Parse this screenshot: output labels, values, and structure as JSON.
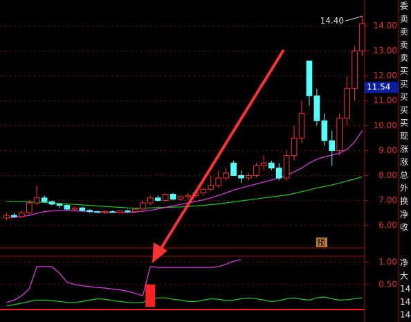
{
  "chart_data": {
    "type": "candlestick",
    "open": [
      6.3,
      6.4,
      6.35,
      6.5,
      6.9,
      7.1,
      6.95,
      6.85,
      6.8,
      6.65,
      6.7,
      6.6,
      6.55,
      6.52,
      6.55,
      6.52,
      6.58,
      6.55,
      6.65,
      6.9,
      7.1,
      7.0,
      7.25,
      7.05,
      7.15,
      7.2,
      7.3,
      7.45,
      7.6,
      7.9,
      8.5,
      8.0,
      7.9,
      8.0,
      8.4,
      8.5,
      8.3,
      7.9,
      8.8,
      9.5,
      12.6,
      11.2,
      10.2,
      9.4,
      9.0,
      10.3,
      11.5,
      13.0
    ],
    "high": [
      6.5,
      6.5,
      6.6,
      7.0,
      7.6,
      7.2,
      7.0,
      6.9,
      6.85,
      6.75,
      6.75,
      6.65,
      6.6,
      6.6,
      6.6,
      6.6,
      6.62,
      6.7,
      7.0,
      7.2,
      7.2,
      7.3,
      7.3,
      7.2,
      7.3,
      7.35,
      7.5,
      8.0,
      8.2,
      8.3,
      8.6,
      8.2,
      8.1,
      8.5,
      8.8,
      8.6,
      8.5,
      9.0,
      10.0,
      11.0,
      12.6,
      11.5,
      10.5,
      9.8,
      10.5,
      12.0,
      13.2,
      14.4
    ],
    "low": [
      6.2,
      6.3,
      6.3,
      6.4,
      6.8,
      6.9,
      6.8,
      6.7,
      6.6,
      6.6,
      6.55,
      6.5,
      6.5,
      6.45,
      6.5,
      6.5,
      6.5,
      6.5,
      6.6,
      6.8,
      6.95,
      6.95,
      7.0,
      7.0,
      7.05,
      7.1,
      7.2,
      7.4,
      7.5,
      7.8,
      8.0,
      7.7,
      7.8,
      7.9,
      8.2,
      8.2,
      7.8,
      7.8,
      8.6,
      9.3,
      10.8,
      10.0,
      9.2,
      8.4,
      8.8,
      10.0,
      11.0,
      12.8
    ],
    "close": [
      6.4,
      6.35,
      6.5,
      6.9,
      7.1,
      6.95,
      6.85,
      6.8,
      6.65,
      6.7,
      6.6,
      6.55,
      6.52,
      6.55,
      6.52,
      6.58,
      6.55,
      6.65,
      6.9,
      7.1,
      7.0,
      7.25,
      7.05,
      7.15,
      7.2,
      7.3,
      7.45,
      7.6,
      7.9,
      8.1,
      8.0,
      7.9,
      8.0,
      8.4,
      8.5,
      8.3,
      7.9,
      8.8,
      9.5,
      10.5,
      11.2,
      10.2,
      9.4,
      9.0,
      10.3,
      11.5,
      13.0,
      14.1
    ],
    "up_color": "#ff3232",
    "down_color": "#54ffff",
    "lines": [
      {
        "color": "#22c922",
        "values": [
          6.95,
          6.95,
          6.95,
          6.94,
          6.93,
          6.92,
          6.9,
          6.88,
          6.86,
          6.84,
          6.82,
          6.8,
          6.78,
          6.76,
          6.74,
          6.72,
          6.7,
          6.69,
          6.69,
          6.7,
          6.71,
          6.72,
          6.73,
          6.74,
          6.76,
          6.78,
          6.8,
          6.83,
          6.86,
          6.9,
          6.94,
          6.98,
          7.02,
          7.06,
          7.1,
          7.14,
          7.18,
          7.22,
          7.28,
          7.35,
          7.42,
          7.5,
          7.56,
          7.62,
          7.7,
          7.78,
          7.86,
          7.95
        ]
      },
      {
        "color": "#e63ce6",
        "values": [
          6.3,
          6.32,
          6.35,
          6.4,
          6.48,
          6.55,
          6.58,
          6.6,
          6.6,
          6.58,
          6.57,
          6.55,
          6.54,
          6.53,
          6.52,
          6.52,
          6.52,
          6.53,
          6.56,
          6.6,
          6.66,
          6.72,
          6.78,
          6.84,
          6.9,
          6.96,
          7.02,
          7.1,
          7.2,
          7.3,
          7.42,
          7.5,
          7.58,
          7.66,
          7.74,
          7.82,
          7.9,
          8.0,
          8.15,
          8.3,
          8.5,
          8.65,
          8.75,
          8.82,
          8.9,
          9.05,
          9.35,
          9.8
        ]
      }
    ],
    "ylim": [
      5.26,
      14.77
    ],
    "yticks": [
      {
        "value": 6,
        "label": "6.00"
      },
      {
        "value": 7,
        "label": "7.00"
      },
      {
        "value": 8,
        "label": "8.00"
      },
      {
        "value": 9,
        "label": "9.00"
      },
      {
        "value": 10,
        "label": "10.00"
      },
      {
        "value": 11,
        "label": "11.00"
      },
      {
        "value": 12,
        "label": "12.00"
      },
      {
        "value": 13,
        "label": "13.00"
      },
      {
        "value": 14,
        "label": "14.00"
      }
    ],
    "high_label": {
      "value": 14.4,
      "label": "14.40"
    },
    "price_box": {
      "value": 11.54,
      "label": "11.54"
    },
    "marker": "预",
    "lower": {
      "ylim": [
        -0.06,
        1.1
      ],
      "yticks": [
        {
          "value": 0.5,
          "label": "0.50"
        },
        {
          "value": 1,
          "label": "1.00"
        }
      ],
      "lines": [
        {
          "color": "#e63ce6",
          "values": [
            0.1,
            0.15,
            0.25,
            0.4,
            0.9,
            0.9,
            0.9,
            0.75,
            0.55,
            0.5,
            0.47,
            0.45,
            0.43,
            0.42,
            0.4,
            0.38,
            0.35,
            0.3,
            0.25,
            0.9,
            0.88,
            0.88,
            0.88,
            0.88,
            0.88,
            0.88,
            0.88,
            0.88,
            0.9,
            0.95,
            1.02,
            1.05,
            null,
            null,
            null,
            null,
            null,
            null,
            null,
            null,
            null,
            null,
            null,
            null,
            null,
            null,
            null,
            null
          ]
        },
        {
          "color": "#22c922",
          "values": [
            0.02,
            0.05,
            0.08,
            0.12,
            0.15,
            0.15,
            0.14,
            0.12,
            0.1,
            0.1,
            0.12,
            0.15,
            0.18,
            0.17,
            0.14,
            0.12,
            0.1,
            0.09,
            0.1,
            0.18,
            0.2,
            0.2,
            0.17,
            0.15,
            0.12,
            0.12,
            0.15,
            0.18,
            0.17,
            0.14,
            0.15,
            0.18,
            0.2,
            0.18,
            0.15,
            0.12,
            0.14,
            0.18,
            0.2,
            0.17,
            0.15,
            0.2,
            0.22,
            0.18,
            0.15,
            0.16,
            0.18,
            0.2
          ]
        }
      ],
      "bars": {
        "color": "#ff2020",
        "values": [
          null,
          null,
          null,
          null,
          null,
          null,
          null,
          null,
          null,
          null,
          null,
          null,
          null,
          null,
          null,
          null,
          null,
          null,
          null,
          0.5,
          null,
          null,
          null,
          null,
          null,
          null,
          null,
          null,
          null,
          null,
          null,
          null,
          null,
          null,
          null,
          null,
          null,
          null,
          null,
          null,
          null,
          null,
          null,
          null,
          null,
          null,
          null,
          null
        ]
      },
      "side_labels": [
        "净",
        "大",
        "14",
        "14",
        "14"
      ]
    },
    "side_labels": [
      "委",
      "卖",
      "卖",
      "卖",
      "卖",
      "买",
      "买",
      "买",
      "买",
      "买",
      "现",
      "涨",
      "涨",
      "总",
      "外",
      "换",
      "净",
      "收"
    ]
  }
}
